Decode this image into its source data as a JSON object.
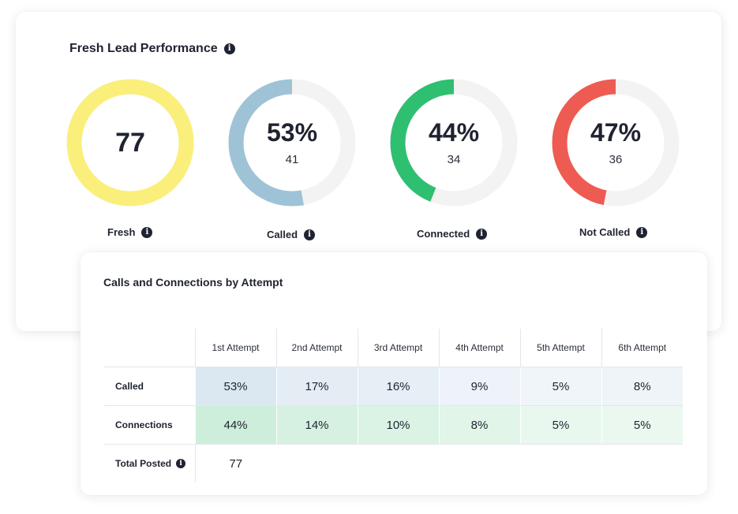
{
  "performance": {
    "title": "Fresh Lead Performance",
    "gauges": [
      {
        "label": "Fresh",
        "value": "77",
        "count": "",
        "percent": 100,
        "color": "#fbef7c",
        "track": "#f3f3f3"
      },
      {
        "label": "Called",
        "value": "53%",
        "count": "41",
        "percent": 53,
        "color": "#9fc3d6",
        "track": "#f3f3f3"
      },
      {
        "label": "Connected",
        "value": "44%",
        "count": "34",
        "percent": 44,
        "color": "#2fbf71",
        "track": "#f3f3f3"
      },
      {
        "label": "Not Called",
        "value": "47%",
        "count": "36",
        "percent": 47,
        "color": "#ee5b52",
        "track": "#f3f3f3"
      }
    ]
  },
  "attempts": {
    "title": "Calls and Connections by Attempt",
    "headers": [
      "1st Attempt",
      "2nd Attempt",
      "3rd Attempt",
      "4th Attempt",
      "5th Attempt",
      "6th Attempt"
    ],
    "called": {
      "label": "Called",
      "values": [
        "53%",
        "17%",
        "16%",
        "9%",
        "5%",
        "8%"
      ]
    },
    "connections": {
      "label": "Connections",
      "values": [
        "44%",
        "14%",
        "10%",
        "8%",
        "5%",
        "5%"
      ]
    },
    "total": {
      "label": "Total Posted",
      "value": "77"
    },
    "colors": {
      "called": [
        "#dce8f1",
        "#e4edf4",
        "#e6eff5",
        "#edf3f8",
        "#f0f5f9",
        "#eef4f8"
      ],
      "connections": [
        "#cdeedb",
        "#d6f1e1",
        "#daf3e4",
        "#e1f5e9",
        "#e9f8ef",
        "#eaf8f0"
      ]
    }
  }
}
